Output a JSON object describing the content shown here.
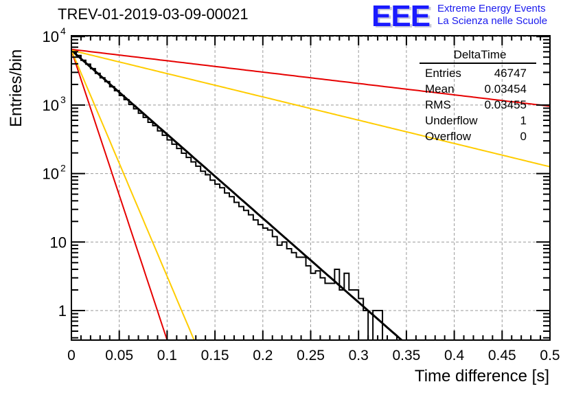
{
  "chart_data": {
    "type": "histogram-with-fits",
    "title": "TREV-01-2019-03-09-00021",
    "xlabel": "Time difference [s]",
    "ylabel": "Entries/bin",
    "xlim": [
      0,
      0.5
    ],
    "ylim": [
      0.37,
      11000
    ],
    "yscale": "log",
    "grid": true,
    "x_ticks": [
      "0",
      "0.05",
      "0.1",
      "0.15",
      "0.2",
      "0.25",
      "0.3",
      "0.35",
      "0.4",
      "0.45",
      "0.5"
    ],
    "x_tick_values": [
      0,
      0.05,
      0.1,
      0.15,
      0.2,
      0.25,
      0.3,
      0.35,
      0.4,
      0.45,
      0.5
    ],
    "y_ticks": [
      {
        "value": 10000,
        "base": "10",
        "exp": "4"
      },
      {
        "value": 1000,
        "base": "10",
        "exp": "3"
      },
      {
        "value": 100,
        "base": "10",
        "exp": "2"
      },
      {
        "value": 10,
        "base": "10",
        "exp": ""
      },
      {
        "value": 1,
        "base": "1",
        "exp": ""
      }
    ],
    "histogram": {
      "name": "DeltaTime",
      "bin_width": 0.005,
      "x_start": 0,
      "values": [
        6100,
        5300,
        4500,
        3950,
        3400,
        2900,
        2500,
        2200,
        1850,
        1620,
        1380,
        1200,
        1020,
        880,
        760,
        660,
        560,
        500,
        420,
        362,
        310,
        268,
        232,
        198,
        172,
        148,
        128,
        108,
        96,
        80,
        70,
        62,
        52,
        46,
        38,
        33,
        29,
        25,
        21,
        18,
        16,
        15,
        12,
        9,
        10,
        8,
        7,
        6,
        6,
        4.5,
        3.5,
        3.8,
        3,
        2.5,
        2.5,
        4,
        2,
        3.5,
        2,
        2,
        1.5,
        1,
        0.3,
        1,
        1,
        0.3,
        0.3,
        0.3,
        0.3,
        0.3,
        0.3,
        0.3,
        0.3,
        0.3,
        0.3,
        0.3,
        0.3,
        0.3,
        0.3,
        0.3,
        0.3,
        0.3,
        0.3,
        0.3,
        0.3,
        0.3,
        0.3,
        0.3,
        0.3,
        0.3,
        0.3,
        0.3,
        0.3,
        0.3,
        0.3,
        0.3,
        0.3,
        0.3,
        0.3,
        0.3
      ],
      "color": "#000000"
    },
    "fits": [
      {
        "name": "fit",
        "color": "#000000",
        "amplitude": 6300,
        "slope_log10_per_s": 12.26
      },
      {
        "name": "red-shallow",
        "color": "#e60000",
        "amplitude": 6500,
        "slope_log10_per_s": 1.66
      },
      {
        "name": "yellow-shallow",
        "color": "#ffcc00",
        "amplitude": 6300,
        "slope_log10_per_s": 3.4
      },
      {
        "name": "red-steep",
        "color": "#e60000",
        "amplitude": 6300,
        "slope_log10_per_s": 42.3
      },
      {
        "name": "yellow-steep",
        "color": "#ffcc00",
        "amplitude": 6300,
        "slope_log10_per_s": 33.0
      }
    ]
  },
  "stats_box": {
    "title": "DeltaTime",
    "rows": [
      {
        "label": "Entries",
        "value": "46747"
      },
      {
        "label": "Mean",
        "value": "0.03454"
      },
      {
        "label": "RMS",
        "value": "0.03455"
      },
      {
        "label": "Underflow",
        "value": "1"
      },
      {
        "label": "Overflow",
        "value": "0"
      }
    ]
  },
  "logo": {
    "mark": "EEE",
    "line1": "Extreme Energy Events",
    "line2": "La Scienza nelle Scuole",
    "color": "#1a1aff"
  }
}
